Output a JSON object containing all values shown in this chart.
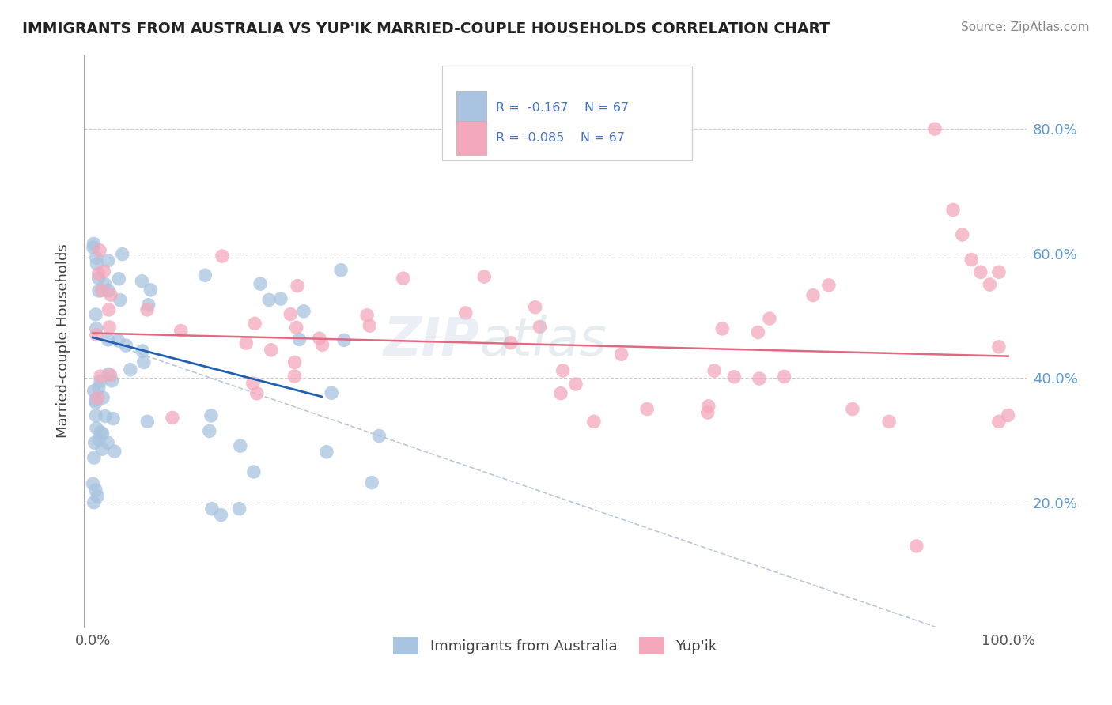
{
  "title": "IMMIGRANTS FROM AUSTRALIA VS YUP'IK MARRIED-COUPLE HOUSEHOLDS CORRELATION CHART",
  "source": "Source: ZipAtlas.com",
  "legend_blue_label": "Immigrants from Australia",
  "legend_pink_label": "Yup'ik",
  "ylabel": "Married-couple Households",
  "ytick_vals": [
    0.2,
    0.4,
    0.6,
    0.8
  ],
  "xlim": [
    -0.01,
    1.02
  ],
  "ylim": [
    0.0,
    0.92
  ],
  "blue_color": "#a8c4e0",
  "pink_color": "#f4a8bc",
  "blue_line_color": "#2060b0",
  "pink_line_color": "#e06880",
  "dashed_line_color": "#b8c8d8",
  "bg_color": "#ffffff",
  "grid_color": "#cccccc",
  "ytick_color": "#5b9bd5",
  "title_color": "#222222",
  "source_color": "#888888",
  "legend_r1": "R =  -0.167",
  "legend_n1": "N = 67",
  "legend_r2": "R = -0.085",
  "legend_n2": "N = 67"
}
